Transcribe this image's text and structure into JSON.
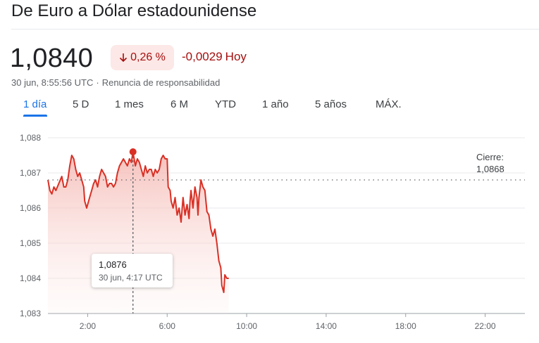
{
  "header": {
    "title": "De Euro a Dólar estadounidense"
  },
  "quote": {
    "price": "1,0840",
    "percent_change": "0,26 %",
    "abs_change": "-0,0029",
    "period": "Hoy",
    "timestamp": "30 jun, 8:55:56 UTC",
    "separator": "·",
    "disclaimer": "Renuncia de responsabilidad",
    "direction": "down",
    "colors": {
      "negative": "#a50e0e",
      "negative_bg": "#fce8e6",
      "line": "#d93025",
      "accent": "#1a73e8"
    }
  },
  "tabs": [
    {
      "label": "1 día",
      "active": true
    },
    {
      "label": "5 D",
      "active": false
    },
    {
      "label": "1 mes",
      "active": false
    },
    {
      "label": "6 M",
      "active": false
    },
    {
      "label": "YTD",
      "active": false
    },
    {
      "label": "1 año",
      "active": false
    },
    {
      "label": "5 años",
      "active": false
    },
    {
      "label": "MÁX.",
      "active": false
    }
  ],
  "chart_data": {
    "type": "line",
    "x_unit": "hours UTC",
    "xlim": [
      0,
      24
    ],
    "ylim": [
      1.083,
      1.088
    ],
    "y_ticks": [
      "1,088",
      "1,087",
      "1,086",
      "1,085",
      "1,084",
      "1,083"
    ],
    "y_tick_values": [
      1.088,
      1.087,
      1.086,
      1.085,
      1.084,
      1.083
    ],
    "x_ticks": [
      "2:00",
      "6:00",
      "10:00",
      "14:00",
      "18:00",
      "22:00"
    ],
    "x_tick_values": [
      2,
      6,
      10,
      14,
      18,
      22
    ],
    "grid": true,
    "previous_close": {
      "label": "Cierre:",
      "value_label": "1,0868",
      "value": 1.0868
    },
    "tooltip": {
      "value": "1,0876",
      "time": "30 jun, 4:17 UTC",
      "x": 4.28,
      "y": 1.0876
    },
    "series": [
      {
        "color": "#d93025",
        "points": [
          [
            0.0,
            1.0868
          ],
          [
            0.1,
            1.0865
          ],
          [
            0.2,
            1.0864
          ],
          [
            0.3,
            1.0866
          ],
          [
            0.4,
            1.0865
          ],
          [
            0.55,
            1.0867
          ],
          [
            0.7,
            1.0869
          ],
          [
            0.8,
            1.0866
          ],
          [
            0.9,
            1.0866
          ],
          [
            1.0,
            1.0868
          ],
          [
            1.1,
            1.0872
          ],
          [
            1.2,
            1.0875
          ],
          [
            1.3,
            1.0874
          ],
          [
            1.4,
            1.0871
          ],
          [
            1.5,
            1.0869
          ],
          [
            1.6,
            1.087
          ],
          [
            1.7,
            1.0868
          ],
          [
            1.8,
            1.0866
          ],
          [
            1.85,
            1.0862
          ],
          [
            1.95,
            1.086
          ],
          [
            2.0,
            1.0861
          ],
          [
            2.1,
            1.0863
          ],
          [
            2.2,
            1.0865
          ],
          [
            2.3,
            1.0867
          ],
          [
            2.4,
            1.0868
          ],
          [
            2.5,
            1.0866
          ],
          [
            2.6,
            1.0869
          ],
          [
            2.7,
            1.0871
          ],
          [
            2.8,
            1.087
          ],
          [
            2.9,
            1.0869
          ],
          [
            3.0,
            1.0866
          ],
          [
            3.1,
            1.0867
          ],
          [
            3.2,
            1.0867
          ],
          [
            3.3,
            1.0866
          ],
          [
            3.4,
            1.0867
          ],
          [
            3.5,
            1.087
          ],
          [
            3.6,
            1.0872
          ],
          [
            3.7,
            1.0873
          ],
          [
            3.8,
            1.0874
          ],
          [
            3.9,
            1.0873
          ],
          [
            4.0,
            1.0872
          ],
          [
            4.1,
            1.0874
          ],
          [
            4.2,
            1.0873
          ],
          [
            4.28,
            1.0876
          ],
          [
            4.4,
            1.0872
          ],
          [
            4.5,
            1.0874
          ],
          [
            4.6,
            1.0873
          ],
          [
            4.7,
            1.0871
          ],
          [
            4.8,
            1.0869
          ],
          [
            4.9,
            1.0872
          ],
          [
            5.0,
            1.087
          ],
          [
            5.1,
            1.0871
          ],
          [
            5.2,
            1.0871
          ],
          [
            5.3,
            1.0869
          ],
          [
            5.4,
            1.0871
          ],
          [
            5.5,
            1.087
          ],
          [
            5.6,
            1.0871
          ],
          [
            5.7,
            1.0874
          ],
          [
            5.8,
            1.0875
          ],
          [
            5.9,
            1.0874
          ],
          [
            6.0,
            1.0874
          ],
          [
            6.05,
            1.0866
          ],
          [
            6.15,
            1.0865
          ],
          [
            6.2,
            1.0862
          ],
          [
            6.3,
            1.086
          ],
          [
            6.4,
            1.0863
          ],
          [
            6.5,
            1.0858
          ],
          [
            6.6,
            1.086
          ],
          [
            6.7,
            1.0856
          ],
          [
            6.8,
            1.0863
          ],
          [
            6.9,
            1.0858
          ],
          [
            7.0,
            1.0861
          ],
          [
            7.1,
            1.0857
          ],
          [
            7.15,
            1.0862
          ],
          [
            7.2,
            1.0865
          ],
          [
            7.3,
            1.086
          ],
          [
            7.4,
            1.0866
          ],
          [
            7.5,
            1.0863
          ],
          [
            7.55,
            1.0858
          ],
          [
            7.6,
            1.0863
          ],
          [
            7.7,
            1.0868
          ],
          [
            7.8,
            1.0866
          ],
          [
            7.9,
            1.0865
          ],
          [
            8.0,
            1.0859
          ],
          [
            8.1,
            1.0858
          ],
          [
            8.2,
            1.0854
          ],
          [
            8.3,
            1.0852
          ],
          [
            8.4,
            1.0854
          ],
          [
            8.5,
            1.085
          ],
          [
            8.6,
            1.0845
          ],
          [
            8.7,
            1.0843
          ],
          [
            8.75,
            1.0838
          ],
          [
            8.85,
            1.0836
          ],
          [
            8.9,
            1.0841
          ],
          [
            9.0,
            1.084
          ],
          [
            9.1,
            1.084
          ]
        ]
      }
    ]
  }
}
